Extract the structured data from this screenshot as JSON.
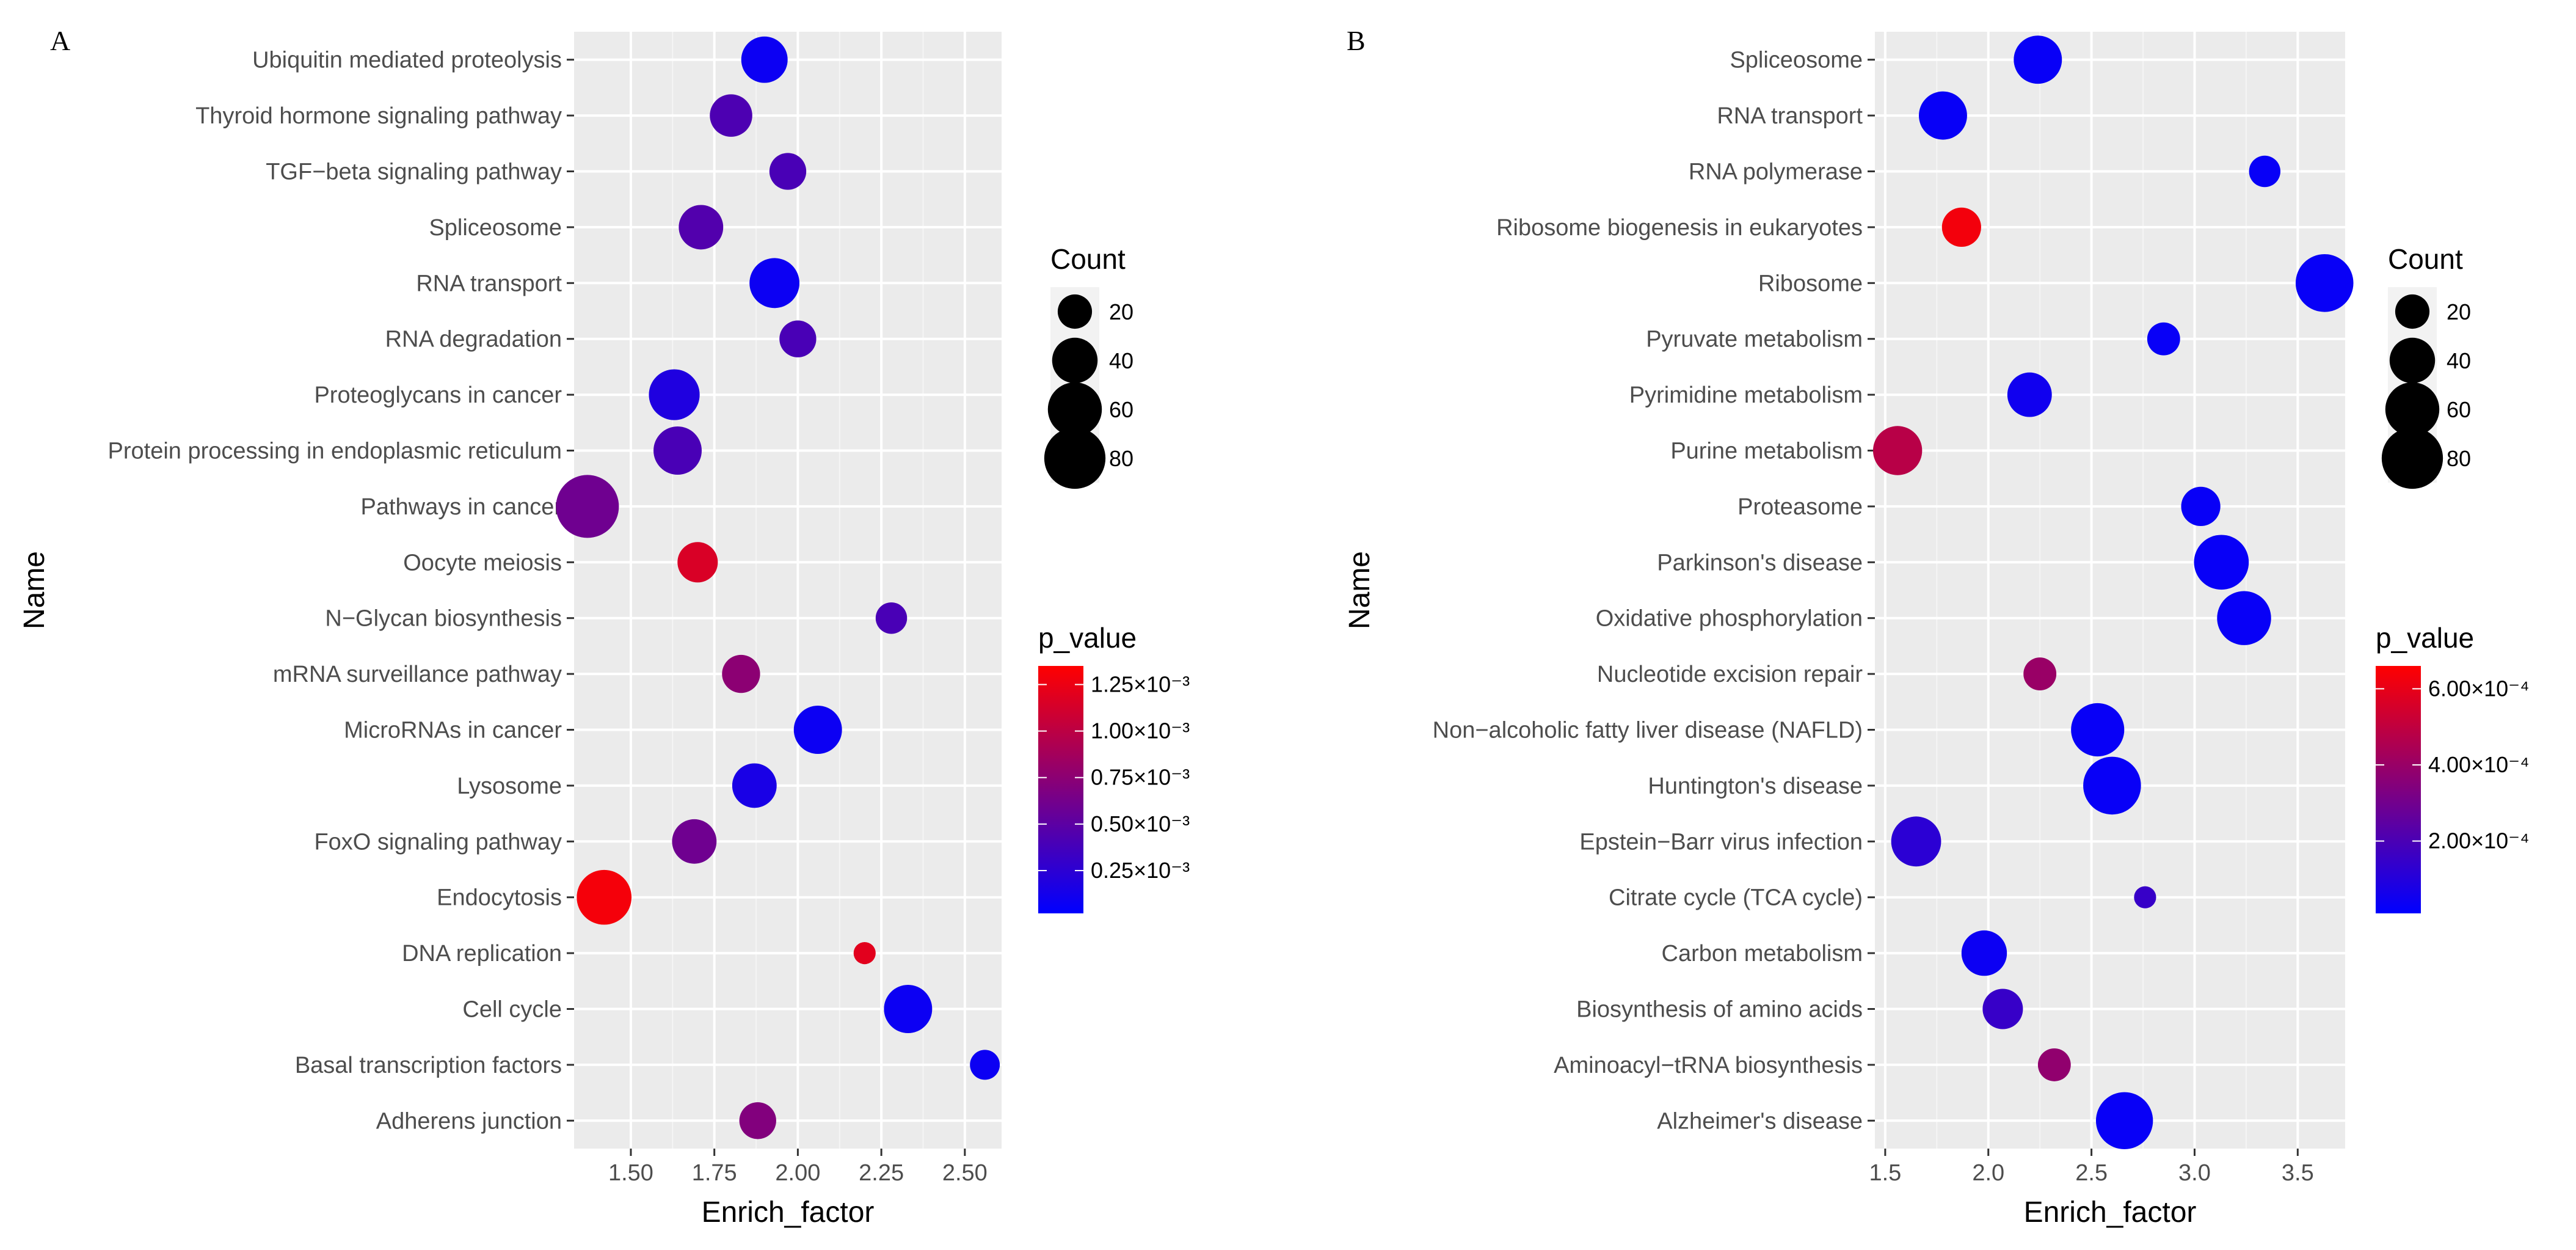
{
  "chart_data": [
    {
      "type": "scatter",
      "panel": "A",
      "title": "",
      "xlabel": "Enrich_factor",
      "ylabel": "Name",
      "xlim": [
        1.33,
        2.61
      ],
      "xticks": [
        1.5,
        1.75,
        2.0,
        2.25,
        2.5
      ],
      "xtick_labels": [
        "1.50",
        "1.75",
        "2.00",
        "2.25",
        "2.50"
      ],
      "categories": [
        "Ubiquitin mediated proteolysis",
        "Thyroid hormone signaling pathway",
        "TGF−beta signaling pathway",
        "Spliceosome",
        "RNA transport",
        "RNA degradation",
        "Proteoglycans in cancer",
        "Protein processing in endoplasmic reticulum",
        "Pathways in cancer",
        "Oocyte meiosis",
        "N−Glycan biosynthesis",
        "mRNA surveillance pathway",
        "MicroRNAs in cancer",
        "Lysosome",
        "FoxO signaling pathway",
        "Endocytosis",
        "DNA replication",
        "Cell cycle",
        "Basal transcription factors",
        "Adherens junction"
      ],
      "points": [
        {
          "name": "Ubiquitin mediated proteolysis",
          "x": 1.9,
          "count": 42,
          "p_value": 8e-05
        },
        {
          "name": "Thyroid hormone signaling pathway",
          "x": 1.8,
          "count": 34,
          "p_value": 0.00042
        },
        {
          "name": "TGF−beta signaling pathway",
          "x": 1.97,
          "count": 24,
          "p_value": 0.0004
        },
        {
          "name": "Spliceosome",
          "x": 1.71,
          "count": 38,
          "p_value": 0.00045
        },
        {
          "name": "RNA transport",
          "x": 1.93,
          "count": 50,
          "p_value": 8e-05
        },
        {
          "name": "RNA degradation",
          "x": 2.0,
          "count": 24,
          "p_value": 0.0004
        },
        {
          "name": "Proteoglycans in cancer",
          "x": 1.63,
          "count": 52,
          "p_value": 0.00018
        },
        {
          "name": "Protein processing in endoplasmic reticulum",
          "x": 1.64,
          "count": 46,
          "p_value": 0.0004
        },
        {
          "name": "Pathways in cancer",
          "x": 1.37,
          "count": 85,
          "p_value": 0.0006
        },
        {
          "name": "Oocyte meiosis",
          "x": 1.7,
          "count": 30,
          "p_value": 0.00115
        },
        {
          "name": "N−Glycan biosynthesis",
          "x": 2.28,
          "count": 16,
          "p_value": 0.0004
        },
        {
          "name": "mRNA surveillance pathway",
          "x": 1.83,
          "count": 26,
          "p_value": 0.00075
        },
        {
          "name": "MicroRNAs in cancer",
          "x": 2.06,
          "count": 46,
          "p_value": 8e-05
        },
        {
          "name": "Lysosome",
          "x": 1.87,
          "count": 38,
          "p_value": 0.00015
        },
        {
          "name": "FoxO signaling pathway",
          "x": 1.69,
          "count": 38,
          "p_value": 0.0006
        },
        {
          "name": "Endocytosis",
          "x": 1.42,
          "count": 62,
          "p_value": 0.0013
        },
        {
          "name": "DNA replication",
          "x": 2.2,
          "count": 6,
          "p_value": 0.0012
        },
        {
          "name": "Cell cycle",
          "x": 2.33,
          "count": 46,
          "p_value": 8e-05
        },
        {
          "name": "Basal transcription factors",
          "x": 2.56,
          "count": 14,
          "p_value": 8e-05
        },
        {
          "name": "Adherens junction",
          "x": 1.88,
          "count": 24,
          "p_value": 0.0007
        }
      ],
      "legend_size": {
        "title": "Count",
        "values": [
          20,
          40,
          60,
          80
        ],
        "labels": [
          "20",
          "40",
          "60",
          "80"
        ]
      },
      "legend_color": {
        "title": "p_value",
        "range": [
          2e-05,
          0.00135
        ],
        "ticks": [
          0.00025,
          0.0005,
          0.00075,
          0.001,
          0.00125
        ],
        "labels": [
          "0.25×10⁻³",
          "0.50×10⁻³",
          "0.75×10⁻³",
          "1.00×10⁻³",
          "1.25×10⁻³"
        ],
        "low_color": "#0000ff",
        "high_color": "#ff0000"
      }
    },
    {
      "type": "scatter",
      "panel": "B",
      "title": "",
      "xlabel": "Enrich_factor",
      "ylabel": "Name",
      "xlim": [
        1.45,
        3.73
      ],
      "xticks": [
        1.5,
        2.0,
        2.5,
        3.0,
        3.5
      ],
      "xtick_labels": [
        "1.5",
        "2.0",
        "2.5",
        "3.0",
        "3.5"
      ],
      "categories": [
        "Spliceosome",
        "RNA transport",
        "RNA polymerase",
        "Ribosome biogenesis in eukaryotes",
        "Ribosome",
        "Pyruvate metabolism",
        "Pyrimidine metabolism",
        "Purine metabolism",
        "Proteasome",
        "Parkinson's disease",
        "Oxidative phosphorylation",
        "Nucleotide excision repair",
        "Non−alcoholic fatty liver disease (NAFLD)",
        "Huntington's disease",
        "Epstein−Barr virus infection",
        "Citrate cycle (TCA cycle)",
        "Carbon metabolism",
        "Biosynthesis of amino acids",
        "Aminoacyl−tRNA biosynthesis",
        "Alzheimer's disease"
      ],
      "points": [
        {
          "name": "Spliceosome",
          "x": 2.24,
          "count": 46,
          "p_value": 3e-05
        },
        {
          "name": "RNA transport",
          "x": 1.78,
          "count": 46,
          "p_value": 3e-05
        },
        {
          "name": "RNA polymerase",
          "x": 3.34,
          "count": 16,
          "p_value": 3e-05
        },
        {
          "name": "Ribosome biogenesis in eukaryotes",
          "x": 1.87,
          "count": 28,
          "p_value": 0.00063
        },
        {
          "name": "Ribosome",
          "x": 3.63,
          "count": 70,
          "p_value": 3e-05
        },
        {
          "name": "Pyruvate metabolism",
          "x": 2.85,
          "count": 18,
          "p_value": 3e-05
        },
        {
          "name": "Pyrimidine metabolism",
          "x": 2.2,
          "count": 38,
          "p_value": 5e-05
        },
        {
          "name": "Purine metabolism",
          "x": 1.56,
          "count": 48,
          "p_value": 0.00048
        },
        {
          "name": "Proteasome",
          "x": 3.03,
          "count": 28,
          "p_value": 3e-05
        },
        {
          "name": "Parkinson's disease",
          "x": 3.13,
          "count": 62,
          "p_value": 3e-05
        },
        {
          "name": "Oxidative phosphorylation",
          "x": 3.24,
          "count": 60,
          "p_value": 3e-05
        },
        {
          "name": "Nucleotide excision repair",
          "x": 2.25,
          "count": 18,
          "p_value": 0.0004
        },
        {
          "name": "Non−alcoholic fatty liver disease (NAFLD)",
          "x": 2.53,
          "count": 58,
          "p_value": 3e-05
        },
        {
          "name": "Huntington's disease",
          "x": 2.6,
          "count": 70,
          "p_value": 3e-05
        },
        {
          "name": "Epstein−Barr virus infection",
          "x": 1.65,
          "count": 50,
          "p_value": 0.00012
        },
        {
          "name": "Citrate cycle (TCA cycle)",
          "x": 2.76,
          "count": 6,
          "p_value": 0.00015
        },
        {
          "name": "Carbon metabolism",
          "x": 1.98,
          "count": 40,
          "p_value": 4e-05
        },
        {
          "name": "Biosynthesis of amino acids",
          "x": 2.07,
          "count": 30,
          "p_value": 0.00015
        },
        {
          "name": "Aminoacyl−tRNA biosynthesis",
          "x": 2.32,
          "count": 18,
          "p_value": 0.00038
        },
        {
          "name": "Alzheimer's disease",
          "x": 2.66,
          "count": 68,
          "p_value": 3e-05
        }
      ],
      "legend_size": {
        "title": "Count",
        "values": [
          20,
          40,
          60,
          80
        ],
        "labels": [
          "20",
          "40",
          "60",
          "80"
        ]
      },
      "legend_color": {
        "title": "p_value",
        "range": [
          1e-05,
          0.00066
        ],
        "ticks": [
          0.0002,
          0.0004,
          0.0006
        ],
        "labels": [
          "2.00×10⁻⁴",
          "4.00×10⁻⁴",
          "6.00×10⁻⁴"
        ],
        "low_color": "#0000ff",
        "high_color": "#ff0000"
      }
    }
  ]
}
